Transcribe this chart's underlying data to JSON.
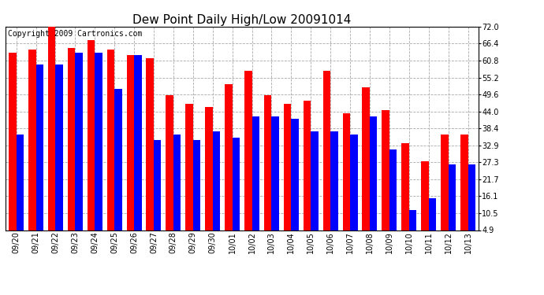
{
  "title": "Dew Point Daily High/Low 20091014",
  "copyright": "Copyright 2009 Cartronics.com",
  "dates": [
    "09/20",
    "09/21",
    "09/22",
    "09/23",
    "09/24",
    "09/25",
    "09/26",
    "09/27",
    "09/28",
    "09/29",
    "09/30",
    "10/01",
    "10/02",
    "10/03",
    "10/04",
    "10/05",
    "10/06",
    "10/07",
    "10/08",
    "10/09",
    "10/10",
    "10/11",
    "10/12",
    "10/13"
  ],
  "highs": [
    63.5,
    64.5,
    73.0,
    65.0,
    67.5,
    64.5,
    62.5,
    61.5,
    49.5,
    46.5,
    45.5,
    53.0,
    57.5,
    49.5,
    46.5,
    47.5,
    57.5,
    43.5,
    52.0,
    44.5,
    33.5,
    27.5,
    36.5,
    36.5
  ],
  "lows": [
    36.5,
    59.5,
    59.5,
    63.5,
    63.5,
    51.5,
    62.5,
    34.5,
    36.5,
    34.5,
    37.5,
    35.5,
    42.5,
    42.5,
    41.5,
    37.5,
    37.5,
    36.5,
    42.5,
    31.5,
    11.5,
    15.5,
    26.5,
    26.5
  ],
  "high_color": "#ff0000",
  "low_color": "#0000ff",
  "background_color": "#ffffff",
  "grid_color": "#aaaaaa",
  "yticks": [
    4.9,
    10.5,
    16.1,
    21.7,
    27.3,
    32.9,
    38.4,
    44.0,
    49.6,
    55.2,
    60.8,
    66.4,
    72.0
  ],
  "ymin": 4.9,
  "ymax": 72.0,
  "bar_width": 0.38,
  "title_fontsize": 11,
  "tick_fontsize": 7,
  "copyright_fontsize": 7
}
